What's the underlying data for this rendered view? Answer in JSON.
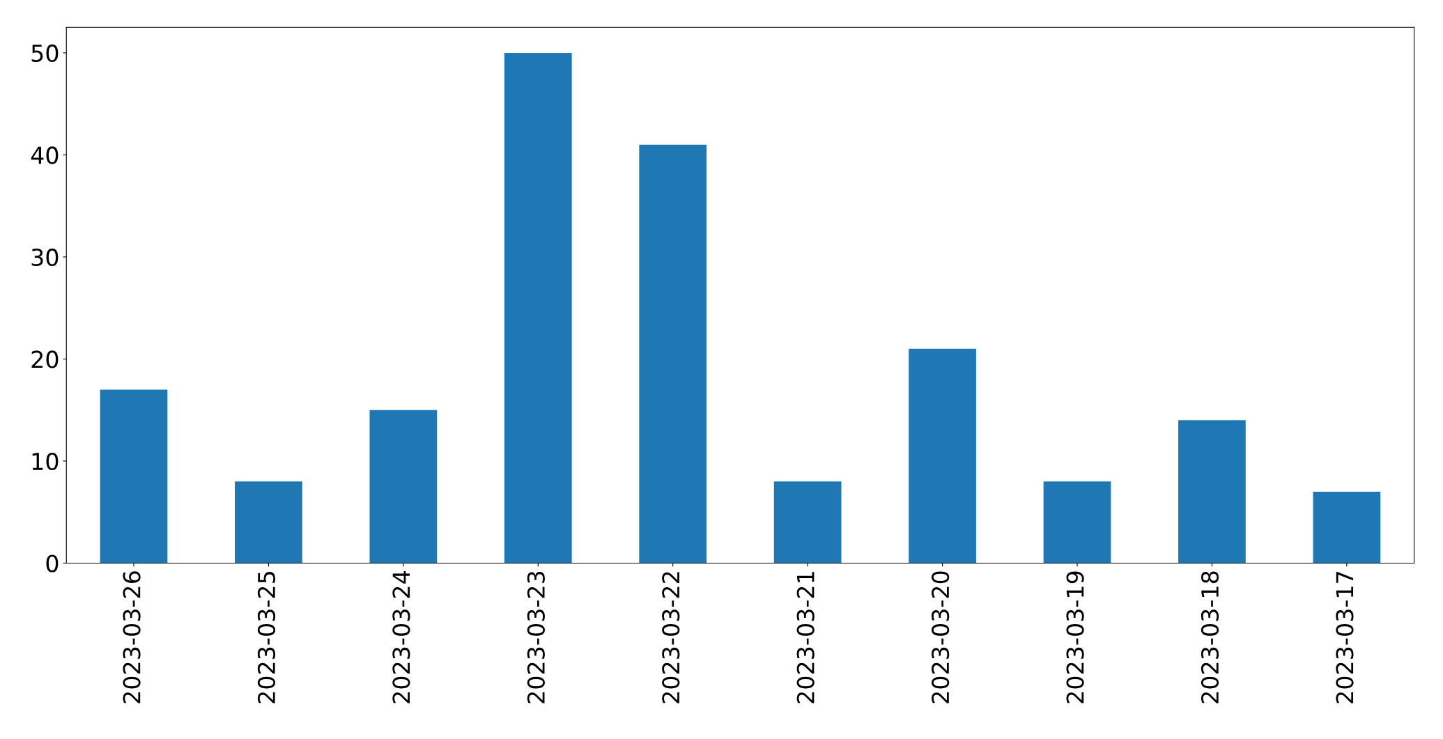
{
  "chart_data": {
    "type": "bar",
    "categories": [
      "2023-03-26",
      "2023-03-25",
      "2023-03-24",
      "2023-03-23",
      "2023-03-22",
      "2023-03-21",
      "2023-03-20",
      "2023-03-19",
      "2023-03-18",
      "2023-03-17"
    ],
    "values": [
      17,
      8,
      15,
      50,
      41,
      8,
      21,
      8,
      14,
      7
    ],
    "color": "#1f77b4",
    "ylim": [
      0,
      52.5
    ],
    "yticks": [
      0,
      10,
      20,
      30,
      40,
      50
    ],
    "grid": false
  }
}
